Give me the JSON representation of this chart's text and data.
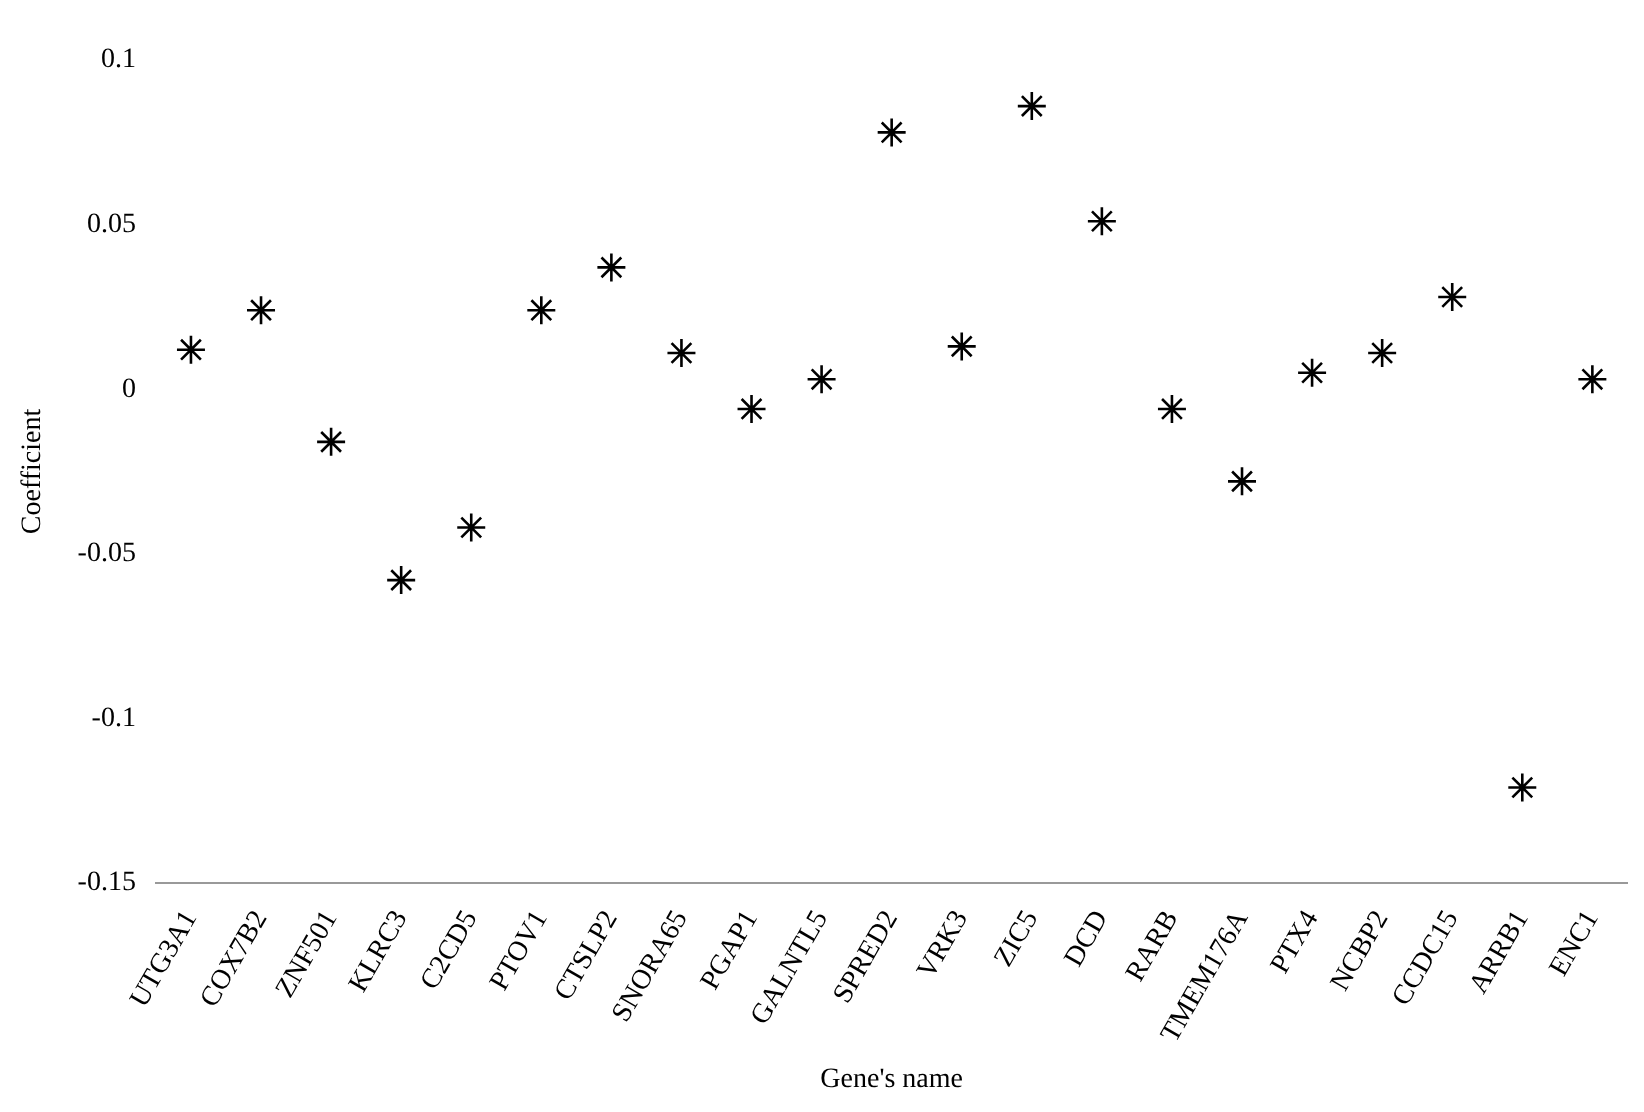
{
  "chart_data": {
    "type": "scatter",
    "xlabel": "Gene's name",
    "ylabel": "Coefficient",
    "categories": [
      "UTG3A1",
      "COX7B2",
      "ZNF501",
      "KLRC3",
      "C2CD5",
      "PTOV1",
      "CTSLP2",
      "SNORA65",
      "PGAP1",
      "GALNTL5",
      "SPRED2",
      "VRK3",
      "ZIC5",
      "DCD",
      "RARB",
      "TMEM176A",
      "PTX4",
      "NCBP2",
      "CCDC15",
      "ARRB1",
      "ENC1"
    ],
    "series": [
      {
        "color": "#000000",
        "values": [
          0.012,
          0.024,
          -0.016,
          -0.058,
          -0.042,
          0.024,
          0.037,
          0.011,
          -0.006,
          0.003,
          0.078,
          0.013,
          0.086,
          0.051,
          -0.006,
          -0.028,
          0.005,
          0.011,
          0.028,
          -0.121,
          0.003
        ]
      }
    ],
    "ylim": [
      -0.15,
      0.1
    ],
    "yticks": [
      -0.15,
      -0.1,
      -0.05,
      0,
      0.05,
      0.1
    ],
    "grid": false,
    "legend": false,
    "marker": "cross"
  }
}
